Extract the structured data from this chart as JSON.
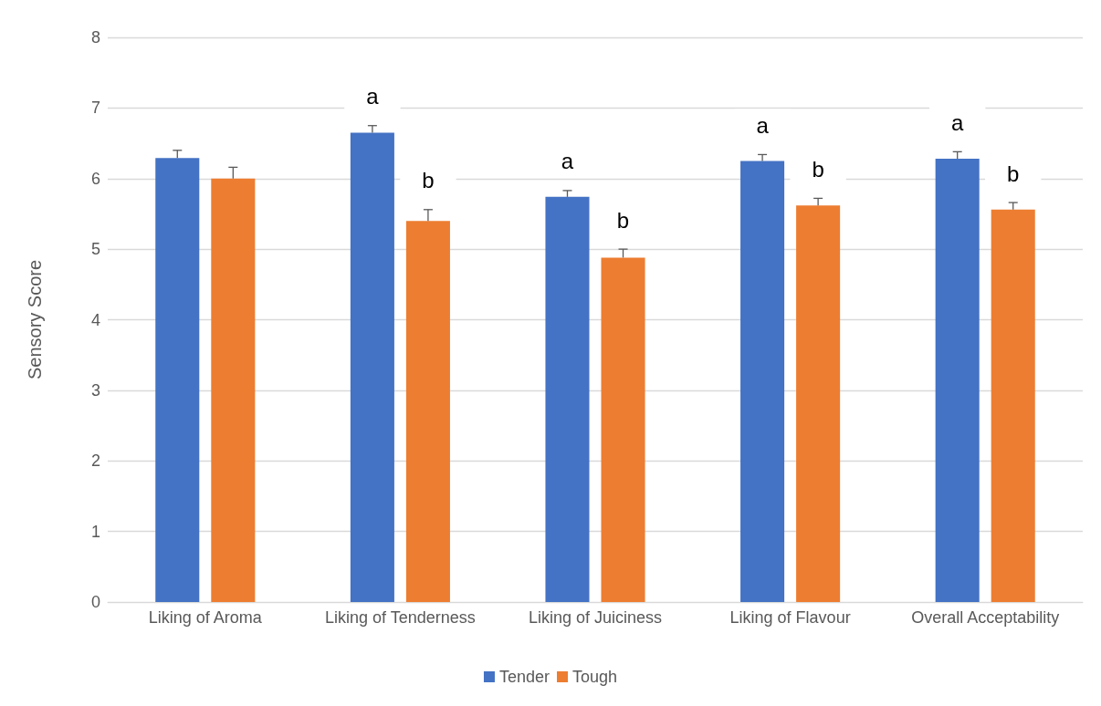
{
  "chart_data": {
    "type": "bar",
    "ylabel": "Sensory Score",
    "categories": [
      "Liking of Aroma",
      "Liking of Tenderness",
      "Liking of Juiciness",
      "Liking of Flavour",
      "Overall Acceptability"
    ],
    "series": [
      {
        "name": "Tender",
        "color": "#4472c4",
        "values": [
          6.29,
          6.65,
          5.74,
          6.25,
          6.28
        ],
        "errors": [
          0.11,
          0.1,
          0.09,
          0.09,
          0.1
        ]
      },
      {
        "name": "Tough",
        "color": "#ed7d31",
        "values": [
          6.0,
          5.4,
          4.88,
          5.62,
          5.56
        ],
        "errors": [
          0.16,
          0.16,
          0.12,
          0.1,
          0.1
        ]
      }
    ],
    "ylim": [
      0,
      8
    ],
    "yticks": [
      0,
      1,
      2,
      3,
      4,
      5,
      6,
      7,
      8
    ],
    "grid": "y",
    "legend": "bottom",
    "annotations": [
      "a",
      "b",
      "a",
      "b",
      "a",
      "b",
      "a",
      "b"
    ]
  }
}
